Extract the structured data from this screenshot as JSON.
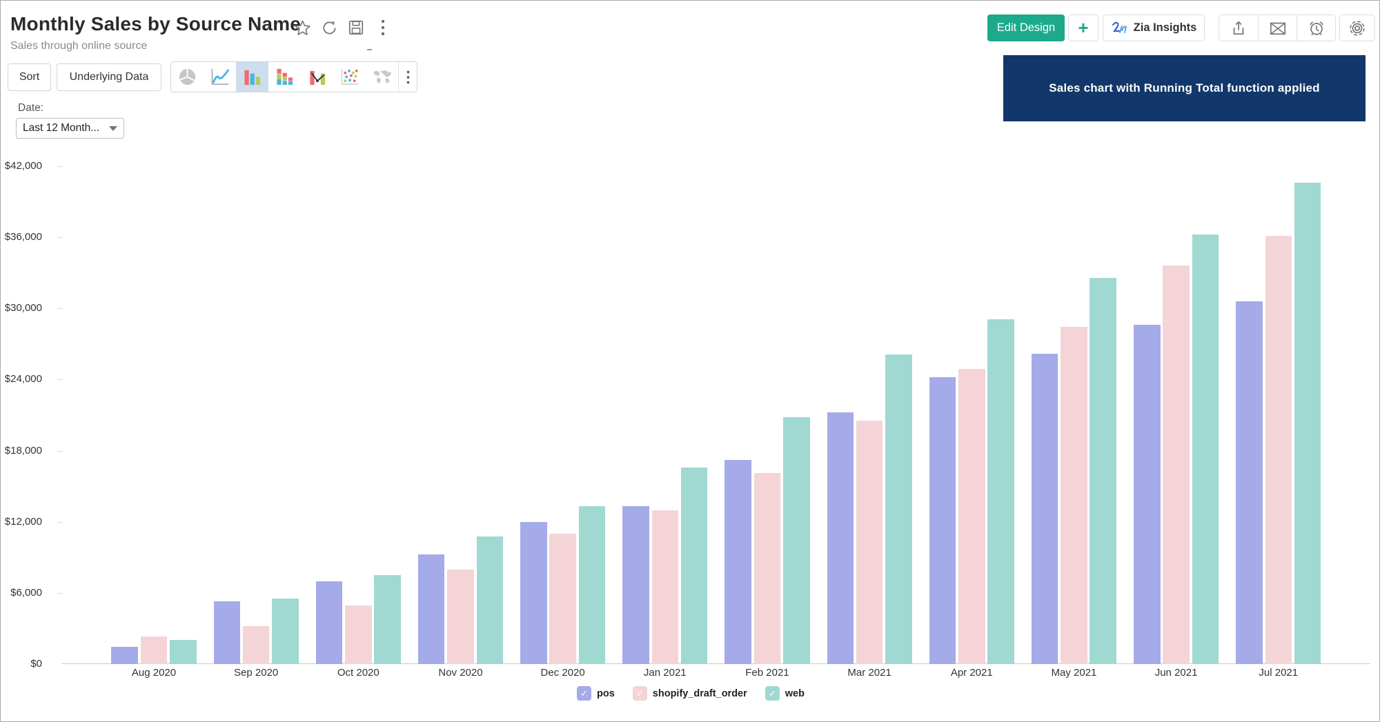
{
  "header": {
    "title": "Monthly Sales by Source Name",
    "subtitle": "Sales through online source",
    "icons": [
      "star-icon",
      "refresh-icon",
      "save-icon",
      "kebab-menu-icon"
    ]
  },
  "toolbar": {
    "sort_label": "Sort",
    "underlying_data_label": "Underlying Data",
    "chart_type_icons": [
      "pie-chart-icon",
      "line-chart-icon",
      "bar-chart-icon",
      "stacked-bar-chart-icon",
      "combo-chart-icon",
      "scatter-chart-icon",
      "map-chart-icon",
      "more-chart-types-icon"
    ],
    "selected_chart_type": "bar-chart-icon"
  },
  "filters": {
    "date_label": "Date:",
    "date_value": "Last 12 Month..."
  },
  "actions": {
    "edit_design_label": "Edit Design",
    "plus_label": "+",
    "zia_label": "Zia Insights",
    "icon_buttons": [
      "share-icon",
      "email-icon",
      "schedule-icon",
      "settings-gear-icon"
    ]
  },
  "banner": {
    "text": "Sales chart with Running Total function applied",
    "bg_color": "#12386b"
  },
  "chart_data": {
    "type": "bar",
    "title": "Monthly Sales by Source Name",
    "categories": [
      "Aug 2020",
      "Sep 2020",
      "Oct 2020",
      "Nov 2020",
      "Dec 2020",
      "Jan 2021",
      "Feb 2021",
      "Mar 2021",
      "Apr 2021",
      "May 2021",
      "Jun 2021",
      "Jul 2021"
    ],
    "series": [
      {
        "name": "pos",
        "color": "#a5aae8",
        "values": [
          1450,
          5300,
          7000,
          9250,
          12000,
          13300,
          17200,
          21250,
          24200,
          26200,
          28600,
          30600
        ]
      },
      {
        "name": "shopify_draft_order",
        "color": "#f4d4d7",
        "values": [
          2300,
          3200,
          4950,
          7950,
          11000,
          13000,
          16100,
          20550,
          24900,
          28450,
          33600,
          36100
        ]
      },
      {
        "name": "web",
        "color": "#9fd9d2",
        "values": [
          2050,
          5500,
          7500,
          10750,
          13300,
          16600,
          20800,
          26100,
          29100,
          32600,
          36250,
          40600
        ]
      }
    ],
    "y_ticks": [
      {
        "value": 0,
        "label": "$0"
      },
      {
        "value": 6000,
        "label": "$6,000"
      },
      {
        "value": 12000,
        "label": "$12,000"
      },
      {
        "value": 18000,
        "label": "$18,000"
      },
      {
        "value": 24000,
        "label": "$24,000"
      },
      {
        "value": 30000,
        "label": "$30,000"
      },
      {
        "value": 36000,
        "label": "$36,000"
      },
      {
        "value": 42000,
        "label": "$42,000"
      }
    ],
    "ylim": [
      0,
      42000
    ],
    "grid": false,
    "legend_position": "bottom",
    "legend_checkmark": "✓",
    "xlabel": "",
    "ylabel": ""
  }
}
